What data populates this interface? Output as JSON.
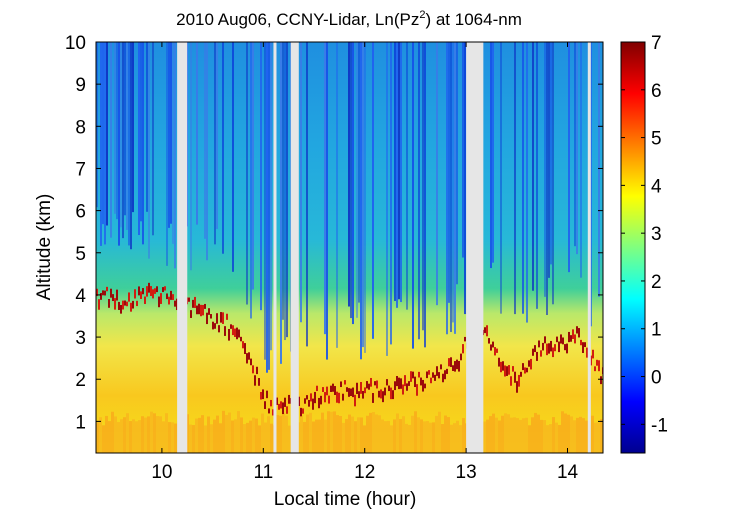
{
  "chart_data": {
    "type": "heatmap",
    "title": {
      "prefix": "2010 Aug06, CCNY-Lidar, Ln(Pz",
      "superscript": "2",
      "suffix": ") at 1064-nm"
    },
    "xlabel": "Local time (hour)",
    "ylabel": "Altitude (km)",
    "xlim": [
      9.35,
      14.35
    ],
    "ylim": [
      0.25,
      10
    ],
    "xticks": [
      10,
      11,
      12,
      13,
      14
    ],
    "yticks": [
      1,
      2,
      3,
      4,
      5,
      6,
      7,
      8,
      9,
      10
    ],
    "colorbar": {
      "range": [
        -1.6,
        7
      ],
      "ticks": [
        -1,
        0,
        1,
        2,
        3,
        4,
        5,
        6,
        7
      ],
      "colormap": "jet"
    },
    "data_gaps_hours": [
      [
        10.15,
        10.25
      ],
      [
        11.1,
        11.13
      ],
      [
        11.27,
        11.35
      ],
      [
        13.0,
        13.17
      ],
      [
        14.2,
        14.23
      ]
    ],
    "layers": {
      "boundary_layer_top_km": [
        {
          "x": 9.35,
          "y": 4.1
        },
        {
          "x": 9.6,
          "y": 3.9
        },
        {
          "x": 9.85,
          "y": 4.15
        },
        {
          "x": 10.1,
          "y": 4.05
        },
        {
          "x": 10.6,
          "y": 3.4
        },
        {
          "x": 10.75,
          "y": 3.2
        },
        {
          "x": 11.05,
          "y": 1.4
        },
        {
          "x": 11.35,
          "y": 1.45
        },
        {
          "x": 11.5,
          "y": 1.7
        },
        {
          "x": 11.75,
          "y": 1.8
        },
        {
          "x": 12.0,
          "y": 1.85
        },
        {
          "x": 12.3,
          "y": 1.9
        },
        {
          "x": 12.6,
          "y": 2.1
        },
        {
          "x": 12.9,
          "y": 2.5
        },
        {
          "x": 13.0,
          "y": 3.0
        },
        {
          "x": 13.2,
          "y": 3.1
        },
        {
          "x": 13.5,
          "y": 2.0
        },
        {
          "x": 13.7,
          "y": 2.8
        },
        {
          "x": 13.9,
          "y": 2.9
        },
        {
          "x": 14.1,
          "y": 3.1
        },
        {
          "x": 14.35,
          "y": 2.1
        }
      ]
    }
  }
}
